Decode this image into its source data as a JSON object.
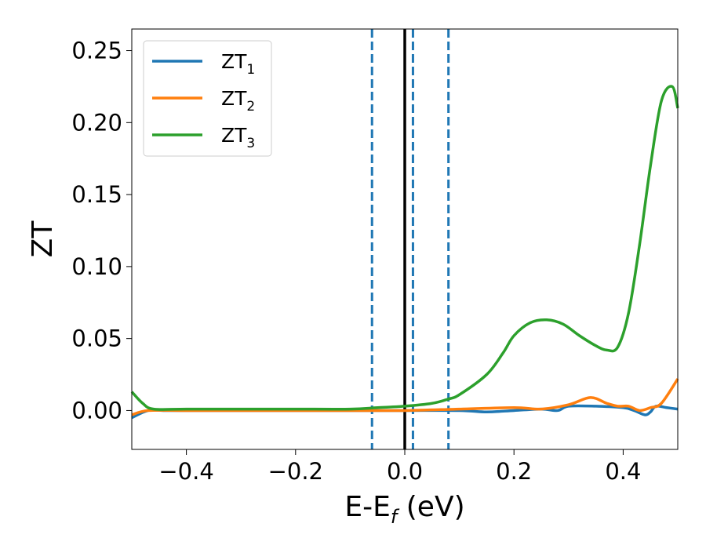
{
  "chart_data": {
    "type": "line",
    "xlabel": "E-E",
    "xlabel_sub": "f",
    "xlabel_unit": " (eV)",
    "ylabel": "ZT",
    "xlim": [
      -0.5,
      0.5
    ],
    "ylim": [
      -0.027,
      0.265
    ],
    "xticks": [
      -0.4,
      -0.2,
      0.0,
      0.2,
      0.4
    ],
    "xtick_labels": [
      "−0.4",
      "−0.2",
      "0.0",
      "0.2",
      "0.4"
    ],
    "yticks": [
      0.0,
      0.05,
      0.1,
      0.15,
      0.2,
      0.25
    ],
    "ytick_labels": [
      "0.00",
      "0.05",
      "0.10",
      "0.15",
      "0.20",
      "0.25"
    ],
    "legend_position": "upper-left",
    "grid": false,
    "vlines": [
      {
        "x": 0.0,
        "style": "solid",
        "color": "#000000"
      },
      {
        "x": -0.06,
        "style": "dashed",
        "color": "#1f77b4"
      },
      {
        "x": 0.015,
        "style": "dashed",
        "color": "#1f77b4"
      },
      {
        "x": 0.08,
        "style": "dashed",
        "color": "#1f77b4"
      }
    ],
    "series": [
      {
        "name": "ZT",
        "sub": "1",
        "color": "#1f77b4",
        "x": [
          -0.5,
          -0.47,
          -0.44,
          -0.4,
          -0.3,
          -0.2,
          -0.1,
          0.0,
          0.1,
          0.15,
          0.2,
          0.25,
          0.28,
          0.3,
          0.35,
          0.4,
          0.42,
          0.44,
          0.45,
          0.46,
          0.48,
          0.5
        ],
        "y": [
          -0.005,
          0.0,
          0.0,
          0.0,
          0.0,
          0.0,
          0.0,
          0.0,
          0.0,
          -0.001,
          0.0,
          0.001,
          0.0,
          0.003,
          0.003,
          0.002,
          0.0,
          -0.003,
          -0.001,
          0.003,
          0.002,
          0.001
        ]
      },
      {
        "name": "ZT",
        "sub": "2",
        "color": "#ff7f0e",
        "x": [
          -0.5,
          -0.47,
          -0.4,
          -0.3,
          -0.2,
          -0.1,
          0.0,
          0.1,
          0.2,
          0.25,
          0.3,
          0.34,
          0.37,
          0.39,
          0.41,
          0.43,
          0.45,
          0.47,
          0.5
        ],
        "y": [
          -0.003,
          0.0,
          0.0,
          0.0,
          0.0,
          0.0,
          0.0,
          0.001,
          0.002,
          0.001,
          0.004,
          0.009,
          0.005,
          0.003,
          0.003,
          0.0,
          0.002,
          0.005,
          0.022
        ]
      },
      {
        "name": "ZT",
        "sub": "3",
        "color": "#2ca02c",
        "x": [
          -0.5,
          -0.48,
          -0.46,
          -0.4,
          -0.3,
          -0.2,
          -0.1,
          -0.05,
          0.0,
          0.05,
          0.08,
          0.1,
          0.15,
          0.18,
          0.2,
          0.23,
          0.26,
          0.29,
          0.32,
          0.35,
          0.37,
          0.39,
          0.41,
          0.43,
          0.45,
          0.47,
          0.49,
          0.5
        ],
        "y": [
          0.013,
          0.005,
          0.001,
          0.001,
          0.001,
          0.001,
          0.001,
          0.002,
          0.003,
          0.005,
          0.008,
          0.011,
          0.025,
          0.04,
          0.052,
          0.061,
          0.063,
          0.06,
          0.052,
          0.045,
          0.042,
          0.044,
          0.068,
          0.115,
          0.17,
          0.215,
          0.225,
          0.21
        ]
      }
    ]
  }
}
